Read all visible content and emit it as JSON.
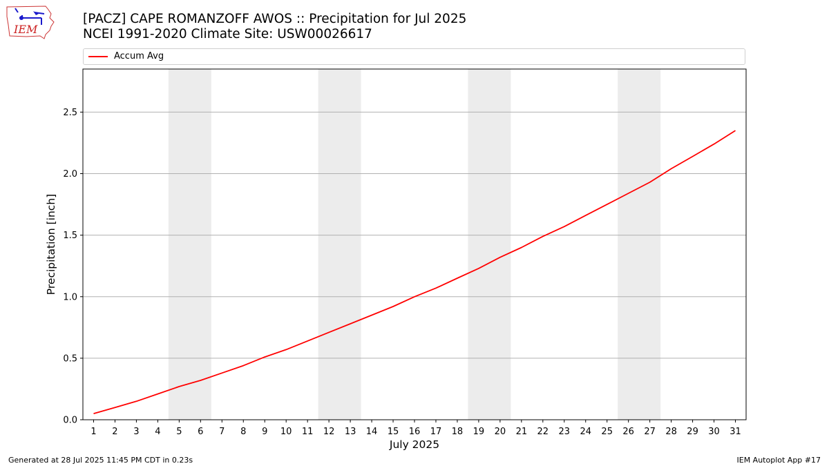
{
  "header": {
    "logo_text": "IEM",
    "title_line1": "[PACZ] CAPE ROMANZOFF AWOS :: Precipitation for Jul 2025",
    "title_line2": "NCEI 1991-2020 Climate Site: USW00026617"
  },
  "footer": {
    "left": "Generated at 28 Jul 2025 11:45 PM CDT in 0.23s",
    "right": "IEM Autoplot App #17"
  },
  "colors": {
    "series": "#ff0000",
    "weekend_band": "#ececec",
    "grid": "#b0b0b0"
  },
  "chart_data": {
    "type": "line",
    "title": "[PACZ] CAPE ROMANZOFF AWOS :: Precipitation for Jul 2025",
    "subtitle": "NCEI 1991-2020 Climate Site: USW00026617",
    "xlabel": "July 2025",
    "ylabel": "Precipitation [inch]",
    "xlim": [
      0.5,
      31.5
    ],
    "ylim": [
      0,
      2.85
    ],
    "yticks": [
      0.0,
      0.5,
      1.0,
      1.5,
      2.0,
      2.5
    ],
    "ytick_labels": [
      "0.0",
      "0.5",
      "1.0",
      "1.5",
      "2.0",
      "2.5"
    ],
    "x": [
      1,
      2,
      3,
      4,
      5,
      6,
      7,
      8,
      9,
      10,
      11,
      12,
      13,
      14,
      15,
      16,
      17,
      18,
      19,
      20,
      21,
      22,
      23,
      24,
      25,
      26,
      27,
      28,
      29,
      30,
      31
    ],
    "x_tick_labels": [
      "1",
      "2",
      "3",
      "4",
      "5",
      "6",
      "7",
      "8",
      "9",
      "10",
      "11",
      "12",
      "13",
      "14",
      "15",
      "16",
      "17",
      "18",
      "19",
      "20",
      "21",
      "22",
      "23",
      "24",
      "25",
      "26",
      "27",
      "28",
      "29",
      "30",
      "31"
    ],
    "series": [
      {
        "name": "Accum Avg",
        "color": "#ff0000",
        "values": [
          0.05,
          0.1,
          0.15,
          0.21,
          0.27,
          0.32,
          0.38,
          0.44,
          0.51,
          0.57,
          0.64,
          0.71,
          0.78,
          0.85,
          0.92,
          1.0,
          1.07,
          1.15,
          1.23,
          1.32,
          1.4,
          1.49,
          1.57,
          1.66,
          1.75,
          1.84,
          1.93,
          2.04,
          2.14,
          2.24,
          2.35
        ]
      }
    ],
    "weekend_bands": [
      [
        4.5,
        6.5
      ],
      [
        11.5,
        13.5
      ],
      [
        18.5,
        20.5
      ],
      [
        25.5,
        27.5
      ]
    ],
    "grid": "horizontal",
    "legend_position": "top"
  }
}
